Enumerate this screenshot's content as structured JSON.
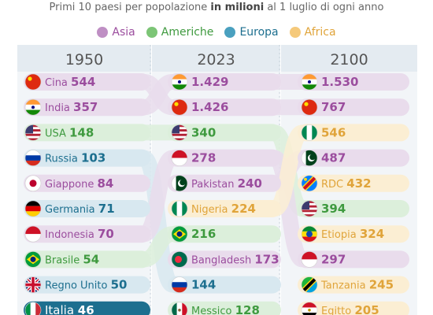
{
  "chart_data": {
    "type": "table",
    "subtitle_pre": "Primi 10 paesi per popolazione ",
    "subtitle_bold": "in milioni",
    "subtitle_post": " al 1 luglio di ogni anno",
    "legend": [
      {
        "key": "asia",
        "label": "Asia",
        "color": "#bf8fc4",
        "text": "#9b4d9e",
        "tint": "#e9dcec"
      },
      {
        "key": "americhe",
        "label": "Americhe",
        "color": "#7cc576",
        "text": "#3f9a3f",
        "tint": "#dcefdb"
      },
      {
        "key": "europa",
        "label": "Europa",
        "color": "#4aa0bf",
        "text": "#1d6f8f",
        "tint": "#d8e8f0"
      },
      {
        "key": "africa",
        "label": "Africa",
        "color": "#f5c97a",
        "text": "#e0a43a",
        "tint": "#fbeed3"
      }
    ],
    "years": [
      "1950",
      "2023",
      "2100"
    ],
    "columns": [
      [
        {
          "country": "Cina",
          "value": "544",
          "region": "asia",
          "flag": "china"
        },
        {
          "country": "India",
          "value": "357",
          "region": "asia",
          "flag": "india"
        },
        {
          "country": "USA",
          "value": "148",
          "region": "americhe",
          "flag": "usa"
        },
        {
          "country": "Russia",
          "value": "103",
          "region": "europa",
          "flag": "russia"
        },
        {
          "country": "Giappone",
          "value": "84",
          "region": "asia",
          "flag": "japan"
        },
        {
          "country": "Germania",
          "value": "71",
          "region": "europa",
          "flag": "germany"
        },
        {
          "country": "Indonesia",
          "value": "70",
          "region": "asia",
          "flag": "indonesia"
        },
        {
          "country": "Brasile",
          "value": "54",
          "region": "americhe",
          "flag": "brazil"
        },
        {
          "country": "Regno Unito",
          "value": "50",
          "region": "europa",
          "flag": "uk"
        },
        {
          "country": "Italia",
          "value": "46",
          "region": "europa",
          "flag": "italy",
          "highlight": true
        }
      ],
      [
        {
          "country": "",
          "value": "1.429",
          "region": "asia",
          "flag": "india"
        },
        {
          "country": "",
          "value": "1.426",
          "region": "asia",
          "flag": "china"
        },
        {
          "country": "",
          "value": "340",
          "region": "americhe",
          "flag": "usa"
        },
        {
          "country": "",
          "value": "278",
          "region": "asia",
          "flag": "indonesia"
        },
        {
          "country": "Pakistan",
          "value": "240",
          "region": "asia",
          "flag": "pakistan"
        },
        {
          "country": "Nigeria",
          "value": "224",
          "region": "africa",
          "flag": "nigeria"
        },
        {
          "country": "",
          "value": "216",
          "region": "americhe",
          "flag": "brazil"
        },
        {
          "country": "Bangladesh",
          "value": "173",
          "region": "asia",
          "flag": "bangladesh"
        },
        {
          "country": "",
          "value": "144",
          "region": "europa",
          "flag": "russia"
        },
        {
          "country": "Messico",
          "value": "128",
          "region": "americhe",
          "flag": "mexico"
        }
      ],
      [
        {
          "country": "",
          "value": "1.530",
          "region": "asia",
          "flag": "india"
        },
        {
          "country": "",
          "value": "767",
          "region": "asia",
          "flag": "china"
        },
        {
          "country": "",
          "value": "546",
          "region": "africa",
          "flag": "nigeria"
        },
        {
          "country": "",
          "value": "487",
          "region": "asia",
          "flag": "pakistan"
        },
        {
          "country": "RDC",
          "value": "432",
          "region": "africa",
          "flag": "drc"
        },
        {
          "country": "",
          "value": "394",
          "region": "americhe",
          "flag": "usa"
        },
        {
          "country": "Etiopia",
          "value": "324",
          "region": "africa",
          "flag": "ethiopia"
        },
        {
          "country": "",
          "value": "297",
          "region": "asia",
          "flag": "indonesia"
        },
        {
          "country": "Tanzania",
          "value": "245",
          "region": "africa",
          "flag": "tanzania"
        },
        {
          "country": "Egitto",
          "value": "205",
          "region": "africa",
          "flag": "egypt"
        }
      ]
    ],
    "links": [
      {
        "from": [
          0,
          0
        ],
        "to": [
          1,
          1
        ],
        "region": "asia"
      },
      {
        "from": [
          0,
          1
        ],
        "to": [
          1,
          0
        ],
        "region": "asia"
      },
      {
        "from": [
          0,
          2
        ],
        "to": [
          1,
          2
        ],
        "region": "americhe"
      },
      {
        "from": [
          0,
          3
        ],
        "to": [
          1,
          8
        ],
        "region": "europa"
      },
      {
        "from": [
          0,
          6
        ],
        "to": [
          1,
          3
        ],
        "region": "asia"
      },
      {
        "from": [
          0,
          7
        ],
        "to": [
          1,
          6
        ],
        "region": "americhe"
      },
      {
        "from": [
          1,
          0
        ],
        "to": [
          2,
          0
        ],
        "region": "asia"
      },
      {
        "from": [
          1,
          1
        ],
        "to": [
          2,
          1
        ],
        "region": "asia"
      },
      {
        "from": [
          1,
          2
        ],
        "to": [
          2,
          5
        ],
        "region": "americhe"
      },
      {
        "from": [
          1,
          3
        ],
        "to": [
          2,
          7
        ],
        "region": "asia"
      },
      {
        "from": [
          1,
          4
        ],
        "to": [
          2,
          3
        ],
        "region": "asia"
      },
      {
        "from": [
          1,
          5
        ],
        "to": [
          2,
          2
        ],
        "region": "africa"
      }
    ]
  }
}
